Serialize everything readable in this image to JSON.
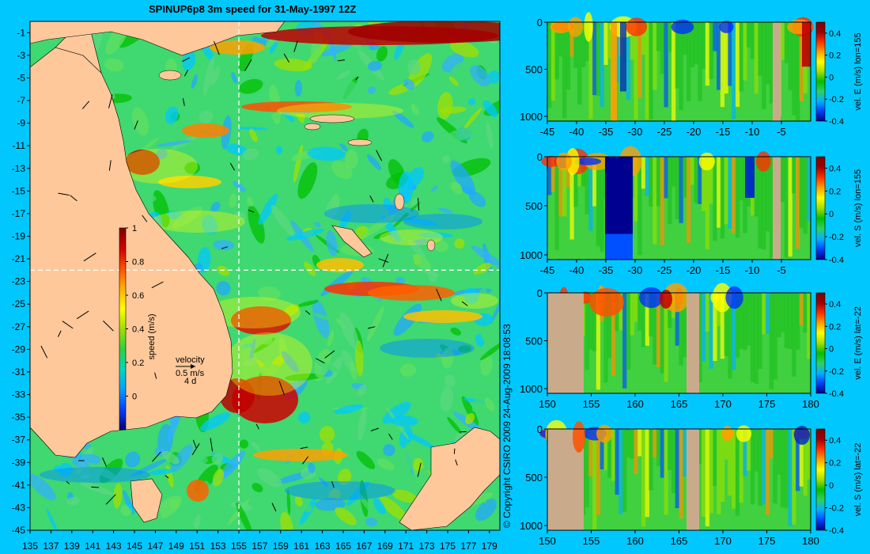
{
  "title": "SPINUP6p8 3m speed for 31-May-1997 12Z",
  "copyright": "© Copyright CSIRO 2009   24-Aug-2009 18:08:53",
  "colors": {
    "background": "#00c8ff",
    "land": "#ffc89a",
    "section_land": "#c9ab8c",
    "section_line": "#ffffff"
  },
  "map": {
    "x_ticks": [
      "135",
      "137",
      "139",
      "141",
      "143",
      "145",
      "147",
      "149",
      "151",
      "153",
      "155",
      "157",
      "159",
      "161",
      "163",
      "165",
      "167",
      "169",
      "171",
      "173",
      "175",
      "177",
      "179"
    ],
    "y_ticks": [
      "-1",
      "-3",
      "-5",
      "-7",
      "-9",
      "-11",
      "-13",
      "-15",
      "-17",
      "-19",
      "-21",
      "-23",
      "-25",
      "-27",
      "-29",
      "-31",
      "-33",
      "-35",
      "-37",
      "-39",
      "-41",
      "-43",
      "-45"
    ],
    "xlim": [
      135,
      180
    ],
    "ylim": [
      -45,
      0
    ],
    "section_lon": 155,
    "section_lat": -22,
    "colorbar": {
      "label": "speed (m/s)",
      "ticks": [
        "1",
        "0.8",
        "0.6",
        "0.4",
        "0.2",
        "0"
      ],
      "range": [
        -0.2,
        1
      ]
    },
    "velocity_key": {
      "title": "velocity",
      "speed": "0.5 m/s",
      "period": "4 d"
    }
  },
  "panels": [
    {
      "x_ticks": [
        "-45",
        "-40",
        "-35",
        "-30",
        "-25",
        "-20",
        "-15",
        "-10",
        "-5"
      ],
      "x_values": [
        -45,
        -40,
        -35,
        -30,
        -25,
        -20,
        -15,
        -10,
        -5
      ],
      "xlim": [
        -45,
        0
      ],
      "y_ticks": [
        "0",
        "500",
        "1000"
      ],
      "colorbar_label": "vel. E (m/s) lon=155",
      "cbar_ticks": [
        "0.4",
        "0.2",
        "0",
        "-0.2",
        "-0.4"
      ]
    },
    {
      "x_ticks": [
        "-45",
        "-40",
        "-35",
        "-30",
        "-25",
        "-20",
        "-15",
        "-10",
        "-5"
      ],
      "x_values": [
        -45,
        -40,
        -35,
        -30,
        -25,
        -20,
        -15,
        -10,
        -5
      ],
      "xlim": [
        -45,
        0
      ],
      "y_ticks": [
        "0",
        "500",
        "1000"
      ],
      "colorbar_label": "vel. S (m/s) lon=155",
      "cbar_ticks": [
        "0.4",
        "0.2",
        "0",
        "-0.2",
        "-0.4"
      ]
    },
    {
      "x_ticks": [
        "150",
        "155",
        "160",
        "165",
        "170",
        "175",
        "180"
      ],
      "x_values": [
        150,
        155,
        160,
        165,
        170,
        175,
        180
      ],
      "xlim": [
        150,
        180
      ],
      "y_ticks": [
        "0",
        "500",
        "1000"
      ],
      "colorbar_label": "vel. E (m/s) lat=-22",
      "cbar_ticks": [
        "0.4",
        "0.2",
        "0",
        "-0.2",
        "-0.4"
      ]
    },
    {
      "x_ticks": [
        "150",
        "155",
        "160",
        "165",
        "170",
        "175",
        "180"
      ],
      "x_values": [
        150,
        155,
        160,
        165,
        170,
        175,
        180
      ],
      "xlim": [
        150,
        180
      ],
      "y_ticks": [
        "0",
        "500",
        "1000"
      ],
      "colorbar_label": "vel. S (m/s) lat=-22",
      "cbar_ticks": [
        "0.4",
        "0.2",
        "0",
        "-0.2",
        "-0.4"
      ]
    }
  ],
  "chart_data": [
    {
      "type": "heatmap",
      "title": "SPINUP6p8 3m speed for 31-May-1997 12Z",
      "xlabel": "",
      "ylabel": "",
      "xlim": [
        135,
        180
      ],
      "ylim": [
        -45,
        0
      ],
      "colorbar_label": "speed (m/s)",
      "colorbar_range": [
        -0.2,
        1
      ]
    },
    {
      "type": "heatmap",
      "xlim": [
        -45,
        0
      ],
      "ylim": [
        1000,
        0
      ],
      "colorbar_label": "vel. E (m/s) lon=155",
      "colorbar_range": [
        -0.4,
        0.5
      ]
    },
    {
      "type": "heatmap",
      "xlim": [
        -45,
        0
      ],
      "ylim": [
        1000,
        0
      ],
      "colorbar_label": "vel. S (m/s) lon=155",
      "colorbar_range": [
        -0.4,
        0.5
      ]
    },
    {
      "type": "heatmap",
      "xlim": [
        150,
        180
      ],
      "ylim": [
        1000,
        0
      ],
      "colorbar_label": "vel. E (m/s) lat=-22",
      "colorbar_range": [
        -0.4,
        0.5
      ]
    },
    {
      "type": "heatmap",
      "xlim": [
        150,
        180
      ],
      "ylim": [
        1000,
        0
      ],
      "colorbar_label": "vel. S (m/s) lat=-22",
      "colorbar_range": [
        -0.4,
        0.5
      ]
    }
  ]
}
